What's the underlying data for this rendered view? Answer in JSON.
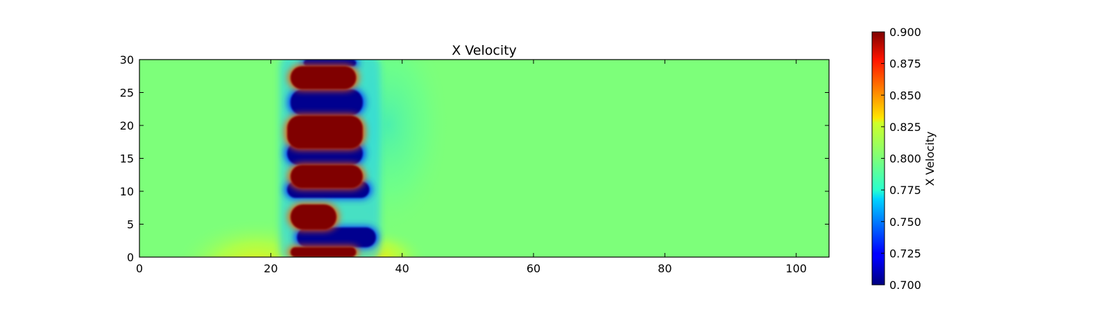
{
  "chart_data": {
    "type": "heatmap",
    "title": "X Velocity",
    "xlabel": "",
    "ylabel": "",
    "xlim": [
      0,
      105
    ],
    "ylim": [
      0,
      30
    ],
    "x_ticks": [
      "0",
      "20",
      "40",
      "60",
      "80",
      "100"
    ],
    "x_tick_values": [
      0,
      20,
      40,
      60,
      80,
      100
    ],
    "y_ticks": [
      "0",
      "5",
      "10",
      "15",
      "20",
      "25",
      "30"
    ],
    "y_tick_values": [
      0,
      5,
      10,
      15,
      20,
      25,
      30
    ],
    "colormap": "jet",
    "colorbar": {
      "label": "X Velocity",
      "range": [
        0.7,
        0.9
      ],
      "ticks": [
        "0.700",
        "0.725",
        "0.750",
        "0.775",
        "0.800",
        "0.825",
        "0.850",
        "0.875",
        "0.900"
      ],
      "tick_values": [
        0.7,
        0.725,
        0.75,
        0.775,
        0.8,
        0.825,
        0.85,
        0.875,
        0.9
      ]
    },
    "background_value": 0.8,
    "vortex_band": {
      "x_range": [
        22,
        35
      ],
      "note": "alternating high/low velocity vortex street"
    },
    "high_regions": [
      {
        "x": [
          23,
          33
        ],
        "y": [
          0,
          1.5
        ]
      },
      {
        "x": [
          23,
          30
        ],
        "y": [
          4.2,
          8
        ]
      },
      {
        "x": [
          23,
          34
        ],
        "y": [
          10.5,
          14
        ]
      },
      {
        "x": [
          22.5,
          34
        ],
        "y": [
          16.5,
          21.5
        ]
      },
      {
        "x": [
          23,
          33
        ],
        "y": [
          25.5,
          29
        ]
      }
    ],
    "low_regions": [
      {
        "x": [
          24,
          36
        ],
        "y": [
          1.5,
          4.5
        ]
      },
      {
        "x": [
          22.5,
          35
        ],
        "y": [
          9,
          11.5
        ]
      },
      {
        "x": [
          22.5,
          34
        ],
        "y": [
          14,
          17.5
        ]
      },
      {
        "x": [
          23,
          34
        ],
        "y": [
          21.5,
          25.5
        ]
      },
      {
        "x": [
          25,
          33
        ],
        "y": [
          29,
          30
        ]
      }
    ]
  }
}
